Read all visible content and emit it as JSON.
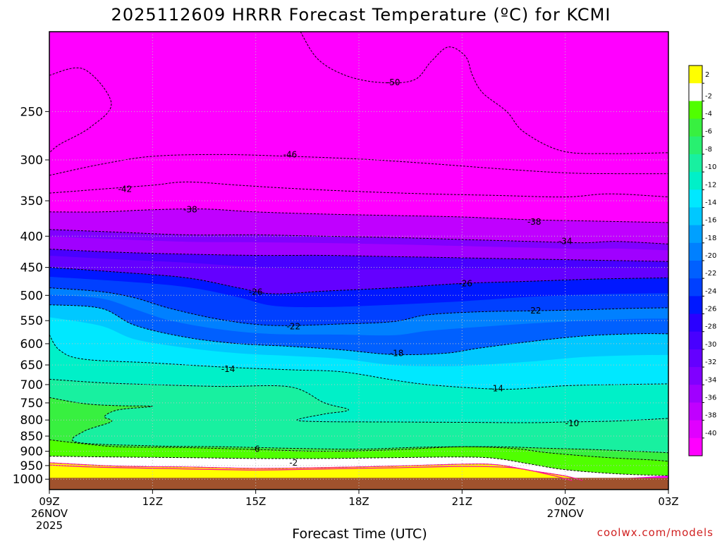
{
  "chart_data": {
    "type": "heatmap",
    "title": "2025112609 HRRR Forecast Temperature (ºC) for KCMI",
    "xlabel": "Forecast Time (UTC)",
    "ylabel": "",
    "y_scale": "pressure (hPa), inverted",
    "ylim": [
      1040,
      185
    ],
    "xlim": [
      0,
      18
    ],
    "x_ticks": [
      {
        "hour": 0,
        "lines": [
          "09Z",
          "26NOV",
          "2025"
        ]
      },
      {
        "hour": 3,
        "lines": [
          "12Z"
        ]
      },
      {
        "hour": 6,
        "lines": [
          "15Z"
        ]
      },
      {
        "hour": 9,
        "lines": [
          "18Z"
        ]
      },
      {
        "hour": 12,
        "lines": [
          "21Z"
        ]
      },
      {
        "hour": 15,
        "lines": [
          "00Z",
          "27NOV"
        ]
      },
      {
        "hour": 18,
        "lines": [
          "03Z"
        ]
      }
    ],
    "y_ticks": [
      250,
      300,
      350,
      400,
      450,
      500,
      550,
      600,
      650,
      700,
      750,
      800,
      850,
      900,
      950,
      1000
    ],
    "grid": true,
    "colorbar": {
      "labels": [
        "2",
        "-2",
        "-4",
        "-6",
        "-8",
        "-10",
        "-12",
        "-14",
        "-16",
        "-18",
        "-20",
        "-22",
        "-24",
        "-26",
        "-28",
        "-30",
        "-32",
        "-34",
        "-36",
        "-38",
        "-40"
      ],
      "colors": [
        "#ffff00",
        "#ffffff",
        "#50ff00",
        "#38f040",
        "#28f070",
        "#18f0a0",
        "#00f0c8",
        "#00e8ff",
        "#00c8ff",
        "#00a0ff",
        "#0080ff",
        "#0060ff",
        "#0040ff",
        "#0018ff",
        "#2a00ff",
        "#4800ff",
        "#6400ff",
        "#8000ff",
        "#a000ff",
        "#c000ff",
        "#e000ff",
        "#ff00ff"
      ]
    },
    "ground_color": "#a0522d",
    "contours": [
      {
        "label": "-50",
        "points": [
          [
            7.3,
            185
          ],
          [
            7.8,
            205
          ],
          [
            8.6,
            218
          ],
          [
            9.6,
            224
          ],
          [
            10.6,
            222
          ],
          [
            11.1,
            207
          ],
          [
            11.6,
            196
          ],
          [
            12.1,
            203
          ],
          [
            12.3,
            218
          ],
          [
            12.6,
            233
          ],
          [
            13.3,
            250
          ],
          [
            13.8,
            270
          ],
          [
            14.9,
            290
          ],
          [
            16.3,
            293
          ],
          [
            18.0,
            292
          ]
        ]
      },
      {
        "label": "-50b",
        "points": [
          [
            0.0,
            218
          ],
          [
            1.0,
            213
          ],
          [
            1.8,
            242
          ],
          [
            1.2,
            265
          ],
          [
            0.3,
            283
          ],
          [
            0.0,
            292
          ]
        ]
      },
      {
        "label": "-46",
        "points": [
          [
            0.0,
            318
          ],
          [
            1.5,
            305
          ],
          [
            3.0,
            296
          ],
          [
            5.0,
            294
          ],
          [
            7.0,
            296
          ],
          [
            9.0,
            299
          ],
          [
            11.0,
            304
          ],
          [
            13.0,
            310
          ],
          [
            15.0,
            315
          ],
          [
            16.5,
            316
          ],
          [
            18.0,
            316
          ]
        ]
      },
      {
        "label": "-42",
        "points": [
          [
            0.0,
            340
          ],
          [
            1.5,
            335
          ],
          [
            3.0,
            330
          ],
          [
            4.0,
            326
          ],
          [
            5.5,
            330
          ],
          [
            7.0,
            334
          ],
          [
            9.0,
            338
          ],
          [
            11.0,
            341
          ],
          [
            13.0,
            343
          ],
          [
            15.0,
            345
          ],
          [
            16.3,
            341
          ],
          [
            18.0,
            345
          ]
        ]
      },
      {
        "label": "-38",
        "points": [
          [
            0.0,
            365
          ],
          [
            1.5,
            365
          ],
          [
            3.0,
            362
          ],
          [
            4.5,
            361
          ],
          [
            6.0,
            365
          ],
          [
            8.0,
            368
          ],
          [
            10.0,
            370
          ],
          [
            12.0,
            372
          ],
          [
            14.0,
            376
          ],
          [
            16.0,
            378
          ],
          [
            18.0,
            380
          ]
        ]
      },
      {
        "label": "-34",
        "points": [
          [
            0.0,
            390
          ],
          [
            2.0,
            394
          ],
          [
            4.0,
            398
          ],
          [
            6.0,
            398
          ],
          [
            8.0,
            400
          ],
          [
            10.0,
            402
          ],
          [
            12.0,
            405
          ],
          [
            14.0,
            408
          ],
          [
            15.5,
            410
          ],
          [
            16.5,
            408
          ],
          [
            18.0,
            412
          ]
        ]
      },
      {
        "label": "-30",
        "points": [
          [
            0.0,
            420
          ],
          [
            2.0,
            425
          ],
          [
            4.0,
            428
          ],
          [
            6.0,
            430
          ],
          [
            8.0,
            430
          ],
          [
            10.0,
            432
          ],
          [
            12.0,
            434
          ],
          [
            14.0,
            436
          ],
          [
            16.0,
            438
          ],
          [
            18.0,
            440
          ]
        ]
      },
      {
        "label": "-26",
        "points": [
          [
            0.0,
            450
          ],
          [
            2.0,
            458
          ],
          [
            4.0,
            468
          ],
          [
            5.5,
            486
          ],
          [
            6.5,
            497
          ],
          [
            8.0,
            492
          ],
          [
            10.0,
            486
          ],
          [
            12.0,
            478
          ],
          [
            14.0,
            474
          ],
          [
            16.0,
            470
          ],
          [
            18.0,
            468
          ]
        ]
      },
      {
        "label": "-22",
        "points": [
          [
            0.0,
            486
          ],
          [
            1.5,
            493
          ],
          [
            2.5,
            505
          ],
          [
            3.5,
            525
          ],
          [
            5.0,
            548
          ],
          [
            6.5,
            560
          ],
          [
            8.5,
            557
          ],
          [
            10.0,
            552
          ],
          [
            11.0,
            538
          ],
          [
            12.5,
            532
          ],
          [
            14.0,
            530
          ],
          [
            15.5,
            528
          ],
          [
            17.0,
            525
          ],
          [
            18.0,
            524
          ]
        ]
      },
      {
        "label": "-18",
        "points": [
          [
            0.0,
            518
          ],
          [
            1.5,
            525
          ],
          [
            2.5,
            560
          ],
          [
            4.0,
            586
          ],
          [
            5.5,
            600
          ],
          [
            7.0,
            606
          ],
          [
            8.5,
            614
          ],
          [
            10.0,
            625
          ],
          [
            11.5,
            622
          ],
          [
            12.5,
            610
          ],
          [
            14.0,
            595
          ],
          [
            15.5,
            583
          ],
          [
            17.0,
            578
          ],
          [
            18.0,
            578
          ]
        ]
      },
      {
        "label": "-14",
        "points": [
          [
            0.0,
            580
          ],
          [
            0.3,
            615
          ],
          [
            1.0,
            636
          ],
          [
            3.0,
            645
          ],
          [
            5.0,
            655
          ],
          [
            7.0,
            662
          ],
          [
            8.5,
            667
          ],
          [
            10.0,
            688
          ],
          [
            11.0,
            700
          ],
          [
            12.5,
            710
          ],
          [
            13.5,
            712
          ],
          [
            15.0,
            703
          ],
          [
            16.5,
            700
          ],
          [
            18.0,
            698
          ]
        ]
      },
      {
        "label": "-10",
        "points": [
          [
            0.0,
            686
          ],
          [
            1.5,
            695
          ],
          [
            3.0,
            700
          ],
          [
            5.0,
            705
          ],
          [
            7.0,
            706
          ],
          [
            8.0,
            750
          ],
          [
            8.7,
            770
          ],
          [
            8.0,
            782
          ],
          [
            7.2,
            800
          ],
          [
            8.0,
            805
          ],
          [
            10.0,
            806
          ],
          [
            12.0,
            807
          ],
          [
            14.0,
            808
          ],
          [
            15.0,
            806
          ],
          [
            16.5,
            803
          ],
          [
            18.0,
            795
          ]
        ]
      },
      {
        "label": "-8",
        "points": [
          [
            0.0,
            735
          ],
          [
            1.0,
            752
          ],
          [
            2.0,
            758
          ],
          [
            3.0,
            760
          ],
          [
            2.0,
            770
          ],
          [
            1.6,
            790
          ],
          [
            1.8,
            805
          ],
          [
            1.0,
            835
          ],
          [
            0.8,
            870
          ],
          [
            3.0,
            882
          ],
          [
            5.0,
            885
          ],
          [
            7.0,
            890
          ],
          [
            9.0,
            893
          ],
          [
            11.0,
            886
          ],
          [
            13.0,
            885
          ],
          [
            14.5,
            890
          ],
          [
            16.0,
            895
          ],
          [
            18.0,
            905
          ]
        ]
      },
      {
        "label": "-6",
        "points": [
          [
            0.0,
            862
          ],
          [
            1.0,
            875
          ],
          [
            2.0,
            885
          ],
          [
            4.0,
            888
          ],
          [
            6.0,
            894
          ],
          [
            8.0,
            900
          ],
          [
            10.0,
            895
          ],
          [
            12.0,
            885
          ],
          [
            13.5,
            891
          ],
          [
            14.5,
            905
          ],
          [
            16.0,
            920
          ],
          [
            17.5,
            930
          ],
          [
            18.0,
            935
          ]
        ]
      },
      {
        "label": "-2",
        "points": [
          [
            0.0,
            917
          ],
          [
            2.0,
            920
          ],
          [
            4.0,
            922
          ],
          [
            6.0,
            925
          ],
          [
            8.0,
            925
          ],
          [
            10.0,
            922
          ],
          [
            12.0,
            920
          ],
          [
            13.0,
            925
          ],
          [
            14.0,
            945
          ],
          [
            15.0,
            965
          ],
          [
            16.5,
            980
          ],
          [
            18.0,
            987
          ]
        ]
      },
      {
        "label": "-2b",
        "points": [
          [
            0.0,
            940
          ],
          [
            2.0,
            952
          ],
          [
            4.0,
            955
          ],
          [
            6.0,
            960
          ],
          [
            8.0,
            957
          ],
          [
            10.0,
            952
          ],
          [
            12.0,
            945
          ],
          [
            13.0,
            947
          ],
          [
            14.0,
            968
          ],
          [
            15.0,
            988
          ],
          [
            15.5,
            1005
          ]
        ]
      },
      {
        "label": "0",
        "points": [
          [
            0.0,
            948
          ],
          [
            1.5,
            956
          ],
          [
            4.0,
            962
          ],
          [
            6.0,
            966
          ],
          [
            8.0,
            962
          ],
          [
            10.0,
            958
          ],
          [
            12.0,
            953
          ],
          [
            13.5,
            958
          ],
          [
            14.5,
            982
          ],
          [
            15.2,
            1005
          ]
        ]
      }
    ],
    "contour_labels": [
      {
        "text": "-50",
        "hour": 10.0,
        "p": 224
      },
      {
        "text": "-46",
        "hour": 7.0,
        "p": 294
      },
      {
        "text": "-42",
        "hour": 2.2,
        "p": 335
      },
      {
        "text": "-38",
        "hour": 4.1,
        "p": 362
      },
      {
        "text": "-38",
        "hour": 14.1,
        "p": 379
      },
      {
        "text": "-34",
        "hour": 15.0,
        "p": 408
      },
      {
        "text": "-26",
        "hour": 6.0,
        "p": 494
      },
      {
        "text": "-26",
        "hour": 12.1,
        "p": 478
      },
      {
        "text": "-22",
        "hour": 7.1,
        "p": 562
      },
      {
        "text": "-22",
        "hour": 14.1,
        "p": 530
      },
      {
        "text": "-18",
        "hour": 10.1,
        "p": 622
      },
      {
        "text": "-14",
        "hour": 5.2,
        "p": 660
      },
      {
        "text": "-14",
        "hour": 13.0,
        "p": 710
      },
      {
        "text": "-10",
        "hour": 15.2,
        "p": 810
      },
      {
        "text": "-6",
        "hour": 6.0,
        "p": 893
      },
      {
        "text": "-2",
        "hour": 7.1,
        "p": 940
      }
    ]
  },
  "credit": "coolwx.com/models"
}
